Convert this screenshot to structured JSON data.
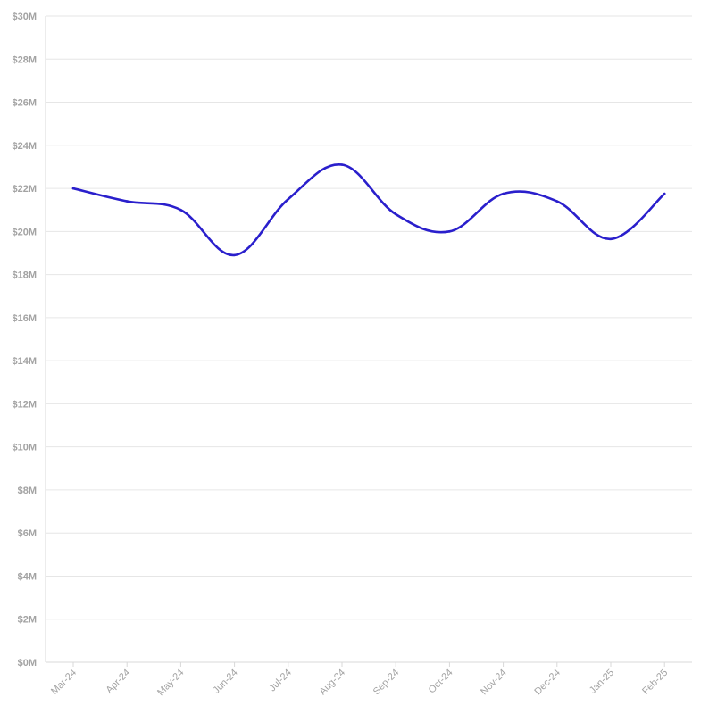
{
  "chart_data": {
    "type": "line",
    "title": "",
    "xlabel": "",
    "ylabel": "",
    "categories": [
      "Mar-24",
      "Apr-24",
      "May-24",
      "Jun-24",
      "Jul-24",
      "Aug-24",
      "Sep-24",
      "Oct-24",
      "Nov-24",
      "Dec-24",
      "Jan-25",
      "Feb-25"
    ],
    "series": [
      {
        "name": "",
        "color": "#2a1fcc",
        "values": [
          22.0,
          21.4,
          21.0,
          18.9,
          21.5,
          23.1,
          20.8,
          20.0,
          21.75,
          21.4,
          19.65,
          21.75
        ]
      }
    ],
    "ylim": [
      0,
      30
    ],
    "yticks": [
      0,
      2,
      4,
      6,
      8,
      10,
      12,
      14,
      16,
      18,
      20,
      22,
      24,
      26,
      28,
      30
    ],
    "ytick_labels": [
      "$0M",
      "$2M",
      "$4M",
      "$6M",
      "$8M",
      "$10M",
      "$12M",
      "$14M",
      "$16M",
      "$18M",
      "$20M",
      "$22M",
      "$24M",
      "$26M",
      "$28M",
      "$30M"
    ],
    "grid": true,
    "legend": "none",
    "curve": "smooth"
  }
}
